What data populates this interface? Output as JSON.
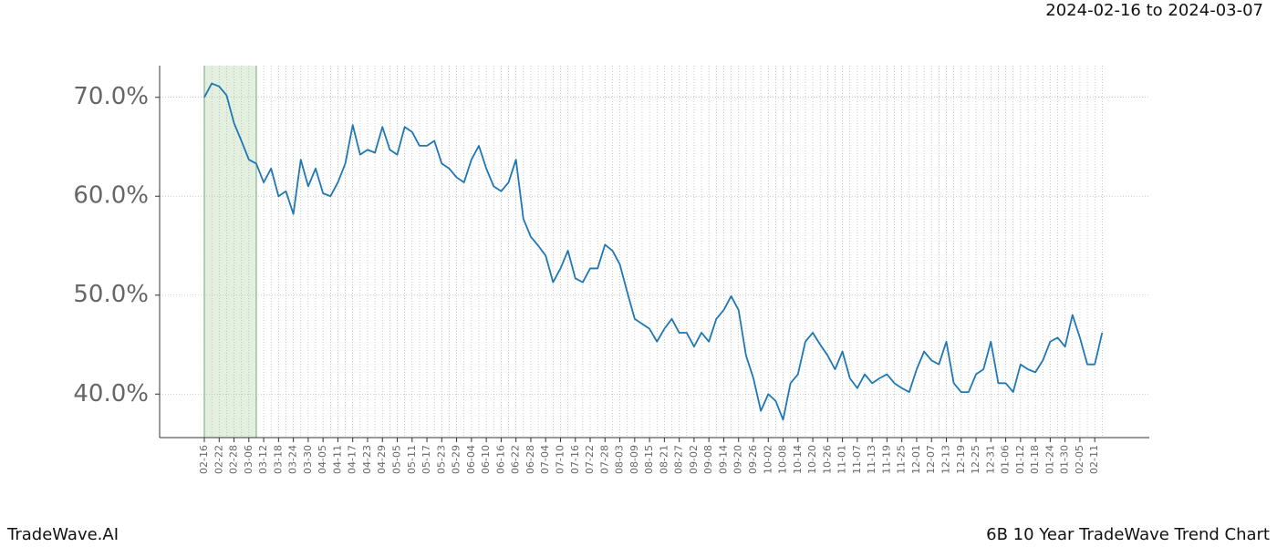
{
  "chart_data": {
    "type": "line",
    "title": "2024-02-16 to 2024-03-07",
    "footer_left": "TradeWave.AI",
    "footer_right": "6B 10 Year TradeWave Trend Chart",
    "categories": [
      "02-16",
      null,
      "02-22",
      null,
      "02-28",
      null,
      "03-06",
      null,
      "03-12",
      null,
      "03-18",
      null,
      "03-24",
      null,
      "03-30",
      null,
      "04-05",
      null,
      "04-11",
      null,
      "04-17",
      null,
      "04-23",
      null,
      "04-29",
      null,
      "05-05",
      null,
      "05-11",
      null,
      "05-17",
      null,
      "05-23",
      null,
      "05-29",
      null,
      "06-04",
      null,
      "06-10",
      null,
      "06-16",
      null,
      "06-22",
      null,
      "06-28",
      null,
      "07-04",
      null,
      "07-10",
      null,
      "07-16",
      null,
      "07-22",
      null,
      "07-28",
      null,
      "08-03",
      null,
      "08-09",
      null,
      "08-15",
      null,
      "08-21",
      null,
      "08-27",
      null,
      "09-02",
      null,
      "09-08",
      null,
      "09-14",
      null,
      "09-20",
      null,
      "09-26",
      null,
      "10-02",
      null,
      "10-08",
      null,
      "10-14",
      null,
      "10-20",
      null,
      "10-26",
      null,
      "11-01",
      null,
      "11-07",
      null,
      "11-13",
      null,
      "11-19",
      null,
      "11-25",
      null,
      "12-01",
      null,
      "12-07",
      null,
      "12-13",
      null,
      "12-19",
      null,
      "12-25",
      null,
      "12-31",
      null,
      "01-06",
      null,
      "01-12",
      null,
      "01-18",
      null,
      "01-24",
      null,
      "01-30",
      null,
      "02-05",
      null,
      "02-11",
      null
    ],
    "series": [
      {
        "color": "#1f77b4",
        "values": [
          70.0,
          71.4,
          71.1,
          70.2,
          67.4,
          65.6,
          63.7,
          63.3,
          61.4,
          62.8,
          60.0,
          60.5,
          58.2,
          63.7,
          61.0,
          62.8,
          60.3,
          60.0,
          61.4,
          63.3,
          67.2,
          64.2,
          64.7,
          64.4,
          67.0,
          64.7,
          64.2,
          67.0,
          66.5,
          65.1,
          65.1,
          65.6,
          63.3,
          62.8,
          61.9,
          61.4,
          63.7,
          65.1,
          62.8,
          61.0,
          60.5,
          61.4,
          63.7,
          57.7,
          55.9,
          55.0,
          54.0,
          51.3,
          52.7,
          54.5,
          51.7,
          51.3,
          52.7,
          52.7,
          55.1,
          54.5,
          53.1,
          50.3,
          47.6,
          47.1,
          46.6,
          45.3,
          46.6,
          47.6,
          46.2,
          46.2,
          44.8,
          46.2,
          45.3,
          47.6,
          48.5,
          49.9,
          48.5,
          43.9,
          41.6,
          38.3,
          40.0,
          39.3,
          37.4,
          41.1,
          42.0,
          45.3,
          46.2,
          45.0,
          43.9,
          42.5,
          44.3,
          41.6,
          40.6,
          42.0,
          41.1,
          41.6,
          42.0,
          41.1,
          40.6,
          40.2,
          42.5,
          44.3,
          43.4,
          43.0,
          45.3,
          41.1,
          40.2,
          40.2,
          42.0,
          42.5,
          45.3,
          41.1,
          41.1,
          40.2,
          43.0,
          42.5,
          42.2,
          43.4,
          45.3,
          45.7,
          44.8,
          48.0,
          45.7,
          43.0,
          43.0,
          46.2
        ]
      }
    ],
    "ylim": [
      35.6,
      73.2
    ],
    "yticks": [
      {
        "value": 40,
        "label": "40.0%"
      },
      {
        "value": 50,
        "label": "50.0%"
      },
      {
        "value": 60,
        "label": "60.0%"
      },
      {
        "value": 70,
        "label": "70.0%"
      }
    ],
    "grid": true,
    "shade_range": [
      0,
      7
    ],
    "shade_color": "#e3f0e0"
  }
}
